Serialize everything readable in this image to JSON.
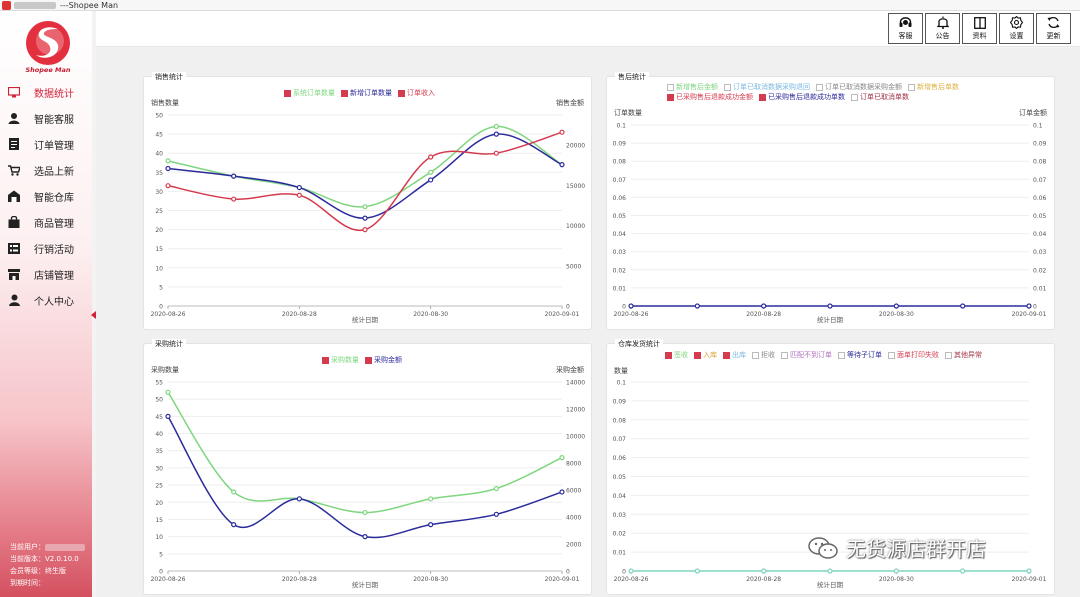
{
  "window": {
    "title": "---Shopee Man"
  },
  "logo": {
    "text": "Shopee Man"
  },
  "sidebar": {
    "items": [
      {
        "label": "数据统计",
        "icon": "monitor-icon",
        "active": true
      },
      {
        "label": "智能客服",
        "icon": "user-service-icon"
      },
      {
        "label": "订单管理",
        "icon": "document-icon"
      },
      {
        "label": "选品上新",
        "icon": "cart-icon"
      },
      {
        "label": "智能仓库",
        "icon": "warehouse-icon"
      },
      {
        "label": "商品管理",
        "icon": "bag-icon"
      },
      {
        "label": "行销活动",
        "icon": "list-icon"
      },
      {
        "label": "店铺管理",
        "icon": "shop-icon"
      },
      {
        "label": "个人中心",
        "icon": "person-icon"
      }
    ],
    "user": {
      "current_user_label": "当前用户：",
      "version_label": "当前版本：",
      "version": "V2.0.10.0",
      "level_label": "会员等级：",
      "level": "终生版",
      "expire_label": "到期时间："
    }
  },
  "toolbar": {
    "buttons": [
      {
        "label": "客服",
        "icon": "headset-icon"
      },
      {
        "label": "公告",
        "icon": "bell-icon"
      },
      {
        "label": "资料",
        "icon": "book-icon"
      },
      {
        "label": "设置",
        "icon": "gear-icon"
      },
      {
        "label": "更新",
        "icon": "refresh-icon"
      }
    ]
  },
  "panels": {
    "sales": {
      "title": "销售统计",
      "y_left": "销售数量",
      "y_right": "销售金额",
      "x_label": "统计日期"
    },
    "aftersale": {
      "title": "售后统计",
      "y_left": "订单数量",
      "y_right": "订单金额",
      "x_label": "统计日期"
    },
    "purchase": {
      "title": "采购统计",
      "y_left": "采购数量",
      "y_right": "采购金额",
      "x_label": "统计日期"
    },
    "warehouse": {
      "title": "仓库发货统计",
      "y_left": "数量",
      "x_label": "统计日期"
    }
  },
  "watermark": {
    "text": "无货源店群开店"
  },
  "chart_data": [
    {
      "id": "sales",
      "type": "line",
      "x": [
        "2020-08-26",
        "2020-08-27",
        "2020-08-28",
        "2020-08-29",
        "2020-08-30",
        "2020-08-31",
        "2020-09-01"
      ],
      "xticks": [
        "2020-08-26",
        "2020-08-28",
        "2020-08-30",
        "2020-09-01"
      ],
      "ylim": [
        0,
        50
      ],
      "yticks": [
        0,
        5,
        10,
        15,
        20,
        25,
        30,
        35,
        40,
        45,
        50
      ],
      "y2lim": [
        0,
        23750
      ],
      "y2ticks": [
        0,
        5000,
        10000,
        15000,
        20000
      ],
      "xlabel": "统计日期",
      "ylabel": "销售数量",
      "y2label": "销售金额",
      "series": [
        {
          "name": "系统订单数量",
          "color": "#7fd67f",
          "checked": true,
          "values": [
            38,
            34,
            31,
            26,
            35,
            47,
            37
          ]
        },
        {
          "name": "新增订单数量",
          "color": "#2b2b9c",
          "checked": true,
          "values": [
            36,
            34,
            31,
            23,
            33,
            45,
            37
          ]
        },
        {
          "name": "订单收入",
          "color": "#d43b4e",
          "checked": true,
          "values": [
            31.5,
            28,
            29,
            20,
            39,
            40,
            45.5
          ]
        }
      ]
    },
    {
      "id": "aftersale",
      "type": "line",
      "x": [
        "2020-08-26",
        "2020-08-27",
        "2020-08-28",
        "2020-08-29",
        "2020-08-30",
        "2020-08-31",
        "2020-09-01"
      ],
      "xticks": [
        "2020-08-26",
        "2020-08-28",
        "2020-08-30",
        "2020-09-01"
      ],
      "ylim": [
        0,
        0.1
      ],
      "yticks": [
        0,
        0.01,
        0.02,
        0.03,
        0.04,
        0.05,
        0.06,
        0.07,
        0.08,
        0.09,
        0.1
      ],
      "y2ticks": [
        0,
        0.01,
        0.02,
        0.03,
        0.04,
        0.05,
        0.06,
        0.07,
        0.08,
        0.09,
        0.1
      ],
      "xlabel": "统计日期",
      "ylabel": "订单数量",
      "y2label": "订单金额",
      "legend": [
        {
          "name": "新增售后金额",
          "color": "#7fd67f",
          "checked": false
        },
        {
          "name": "订单已取消数据采购退回",
          "color": "#7ab8e0",
          "checked": false
        },
        {
          "name": "订单已取消数据采购金额",
          "color": "#888888",
          "checked": false
        },
        {
          "name": "新增售后单数",
          "color": "#e0b040",
          "checked": false
        },
        {
          "name": "已采购售后退款成功金额",
          "color": "#d43b4e",
          "checked": true
        },
        {
          "name": "已采购售后退款成功单数",
          "color": "#2b2b9c",
          "checked": true
        },
        {
          "name": "订单已取消单数",
          "color": "#a03040",
          "checked": false
        }
      ],
      "series": [
        {
          "name": "已采购售后退款成功单数",
          "color": "#2b2b9c",
          "values": [
            0,
            0,
            0,
            0,
            0,
            0,
            0
          ]
        }
      ]
    },
    {
      "id": "purchase",
      "type": "line",
      "x": [
        "2020-08-26",
        "2020-08-27",
        "2020-08-28",
        "2020-08-29",
        "2020-08-30",
        "2020-08-31",
        "2020-09-01"
      ],
      "xticks": [
        "2020-08-26",
        "2020-08-28",
        "2020-08-30",
        "2020-09-01"
      ],
      "ylim": [
        0,
        55
      ],
      "yticks": [
        0,
        5,
        10,
        15,
        20,
        25,
        30,
        35,
        40,
        45,
        50,
        55
      ],
      "y2lim": [
        0,
        14000
      ],
      "y2ticks": [
        0,
        2000,
        4000,
        6000,
        8000,
        10000,
        12000,
        14000
      ],
      "xlabel": "统计日期",
      "ylabel": "采购数量",
      "y2label": "采购金额",
      "series": [
        {
          "name": "采购数量",
          "color": "#7fd67f",
          "checked": true,
          "values": [
            52,
            23,
            21,
            17,
            21,
            24,
            33
          ]
        },
        {
          "name": "采购金额",
          "color": "#2b2b9c",
          "checked": true,
          "values": [
            45,
            13.5,
            21,
            10,
            13.5,
            16.5,
            23
          ]
        }
      ]
    },
    {
      "id": "warehouse",
      "type": "line",
      "x": [
        "2020-08-26",
        "2020-08-27",
        "2020-08-28",
        "2020-08-29",
        "2020-08-30",
        "2020-08-31",
        "2020-09-01"
      ],
      "xticks": [
        "2020-08-26",
        "2020-08-28",
        "2020-08-30",
        "2020-09-01"
      ],
      "ylim": [
        0,
        0.1
      ],
      "yticks": [
        0,
        0.01,
        0.02,
        0.03,
        0.04,
        0.05,
        0.06,
        0.07,
        0.08,
        0.09,
        0.1
      ],
      "xlabel": "统计日期",
      "ylabel": "数量",
      "legend": [
        {
          "name": "签收",
          "color": "#7fd67f",
          "checked": true
        },
        {
          "name": "入库",
          "color": "#e0a030",
          "checked": true
        },
        {
          "name": "出库",
          "color": "#7ab8e0",
          "checked": true
        },
        {
          "name": "拒收",
          "color": "#888888",
          "checked": false
        },
        {
          "name": "匹配不到订单",
          "color": "#b070c0",
          "checked": false
        },
        {
          "name": "等待子订单",
          "color": "#2b2b9c",
          "checked": false
        },
        {
          "name": "面单打印失败",
          "color": "#d43b4e",
          "checked": false
        },
        {
          "name": "其他异常",
          "color": "#a03040",
          "checked": false
        }
      ],
      "series": [
        {
          "name": "签收",
          "color": "#7fd6c0",
          "values": [
            0,
            0,
            0,
            0,
            0,
            0,
            0
          ]
        }
      ]
    }
  ]
}
